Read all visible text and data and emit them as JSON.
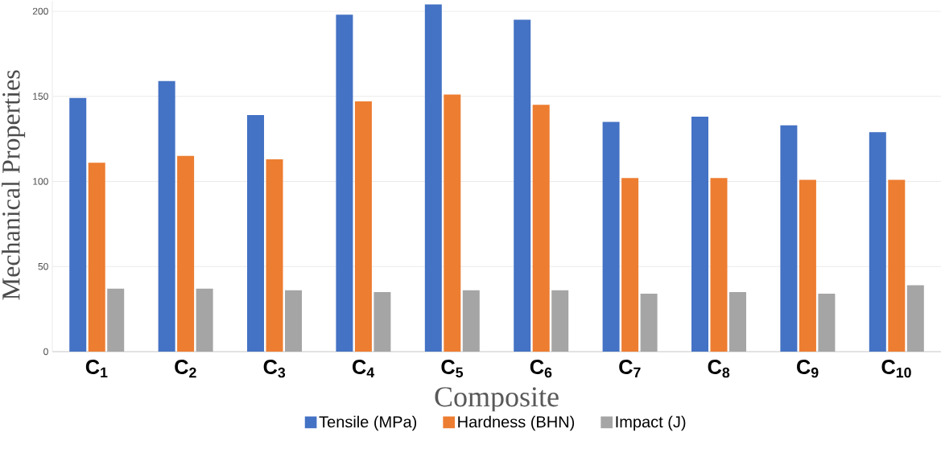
{
  "chart_data": {
    "type": "bar",
    "xlabel": "Composite",
    "ylabel": "Mechanical Properties",
    "categories": [
      "C$_{1}$",
      "C$_{2}$",
      "C$_{3}$",
      "C$_{4}$",
      "C$_{5}$",
      "C$_{6}$",
      "C$_{7}$",
      "C$_{8}$",
      "C$_{9}$",
      "C$_{10}$"
    ],
    "series": [
      {
        "name": "Tensile (MPa)",
        "color": "#4472c4",
        "values": [
          149,
          159,
          139,
          198,
          204,
          195,
          135,
          138,
          133,
          129
        ]
      },
      {
        "name": "Hardness (BHN)",
        "color": "#ed7d31",
        "values": [
          111,
          115,
          113,
          147,
          151,
          145,
          102,
          102,
          101,
          101
        ]
      },
      {
        "name": "Impact (J)",
        "color": "#a5a5a5",
        "values": [
          37,
          37,
          36,
          35,
          36,
          36,
          34,
          35,
          34,
          39
        ]
      }
    ],
    "ylim": [
      0,
      206
    ],
    "yticks": [
      0,
      50,
      100,
      150,
      200
    ],
    "grid": "y",
    "legend": "bottom"
  }
}
